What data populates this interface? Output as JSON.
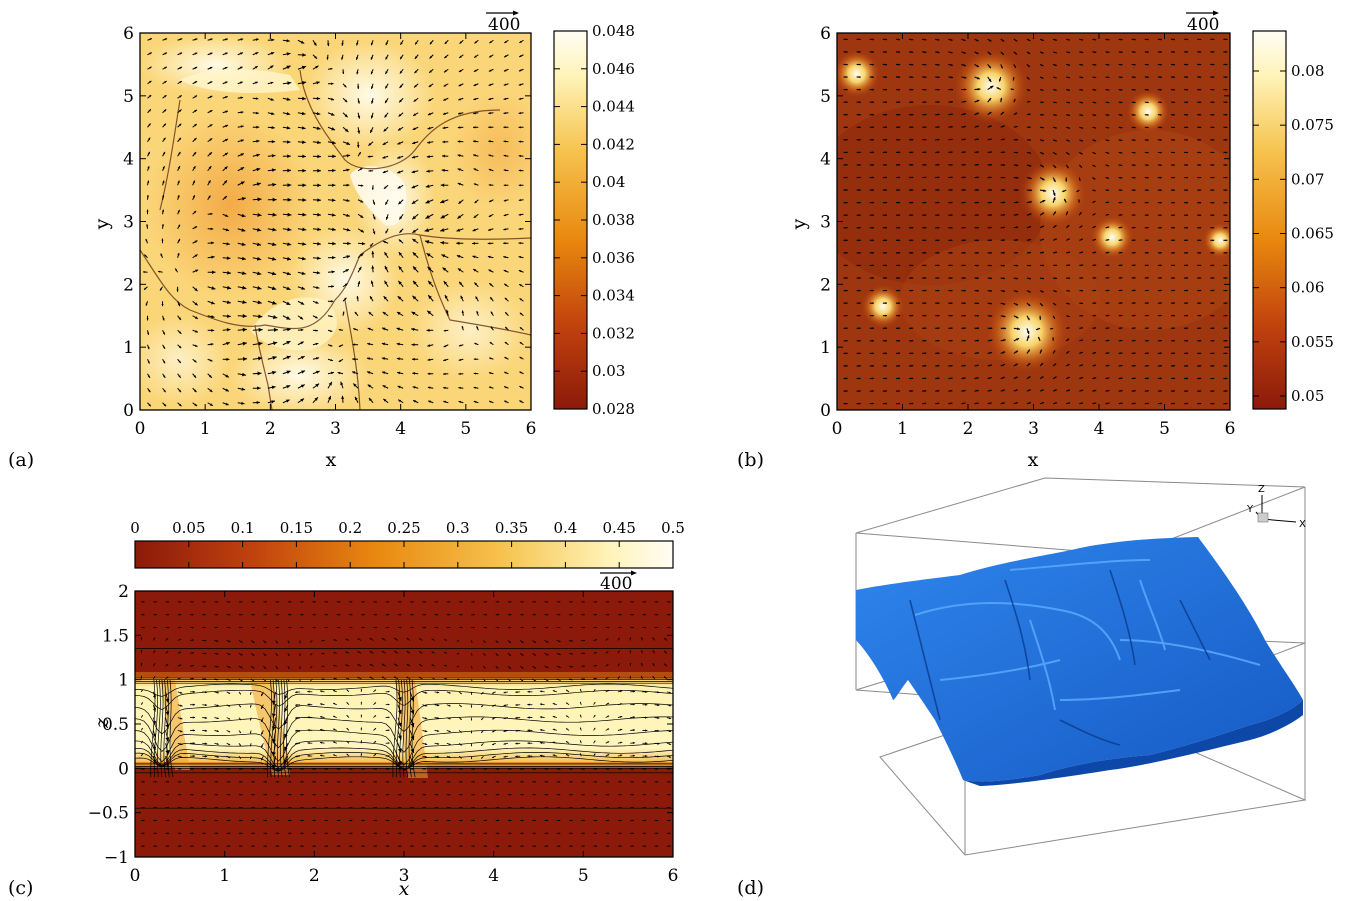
{
  "panels": {
    "a": {
      "label": "(a)",
      "xlabel": "x",
      "ylabel": "y",
      "xticks": [
        "0",
        "1",
        "2",
        "3",
        "4",
        "5",
        "6"
      ],
      "yticks": [
        "0",
        "1",
        "2",
        "3",
        "4",
        "5",
        "6"
      ],
      "vector_ref": "400",
      "colorbar_ticks": [
        "0.048",
        "0.046",
        "0.044",
        "0.042",
        "0.04",
        "0.038",
        "0.036",
        "0.034",
        "0.032",
        "0.03",
        "0.028"
      ],
      "colormap": [
        "#8b1a0a",
        "#c0420e",
        "#e9890f",
        "#f6c24d",
        "#fff3b8",
        "#fffdf4"
      ]
    },
    "b": {
      "label": "(b)",
      "xlabel": "x",
      "ylabel": "y",
      "xticks": [
        "0",
        "1",
        "2",
        "3",
        "4",
        "5",
        "6"
      ],
      "yticks": [
        "0",
        "1",
        "2",
        "3",
        "4",
        "5",
        "6"
      ],
      "vector_ref": "400",
      "colorbar_ticks": [
        "0.08",
        "0.075",
        "0.07",
        "0.065",
        "0.06",
        "0.055",
        "0.05"
      ]
    },
    "c": {
      "label": "(c)",
      "xlabel": "x",
      "ylabel": "z",
      "xticks": [
        "0",
        "1",
        "2",
        "3",
        "4",
        "5",
        "6"
      ],
      "yticks": [
        "2",
        "1.5",
        "1",
        "0.5",
        "0",
        "−0.5",
        "−1"
      ],
      "vector_ref": "400",
      "colorbar_ticks": [
        "0",
        "0.05",
        "0.1",
        "0.15",
        "0.2",
        "0.25",
        "0.3",
        "0.35",
        "0.4",
        "0.45",
        "0.5"
      ]
    },
    "d": {
      "label": "(d)",
      "axis_labels": [
        "Z",
        "Y",
        "X"
      ],
      "surface_color": "#1e6fd9"
    }
  },
  "chart_data": [
    {
      "type": "heatmap",
      "panel": "a",
      "xlim": [
        0,
        6
      ],
      "ylim": [
        0,
        6
      ],
      "clim": [
        0.028,
        0.048
      ],
      "overlay": "velocity vectors"
    },
    {
      "type": "heatmap",
      "panel": "b",
      "xlim": [
        0,
        6
      ],
      "ylim": [
        0,
        6
      ],
      "clim": [
        0.049,
        0.084
      ],
      "overlay": "velocity vectors",
      "hot_spots": [
        [
          2.35,
          5.15
        ],
        [
          3.3,
          3.45
        ],
        [
          2.9,
          1.25
        ],
        [
          0.3,
          5.35
        ],
        [
          4.2,
          2.75
        ],
        [
          5.85,
          2.7
        ],
        [
          4.75,
          4.75
        ],
        [
          0.7,
          1.65
        ]
      ]
    },
    {
      "type": "heatmap",
      "panel": "c",
      "xlim": [
        0,
        6
      ],
      "ylim": [
        -1,
        2
      ],
      "clim": [
        0,
        0.5
      ],
      "overlay": "contours and velocity vectors",
      "bright_layer_z": [
        0,
        1
      ],
      "plume_x": [
        0.3,
        1.6,
        3.0
      ]
    },
    {
      "type": "3d-isosurface",
      "panel": "d"
    }
  ]
}
